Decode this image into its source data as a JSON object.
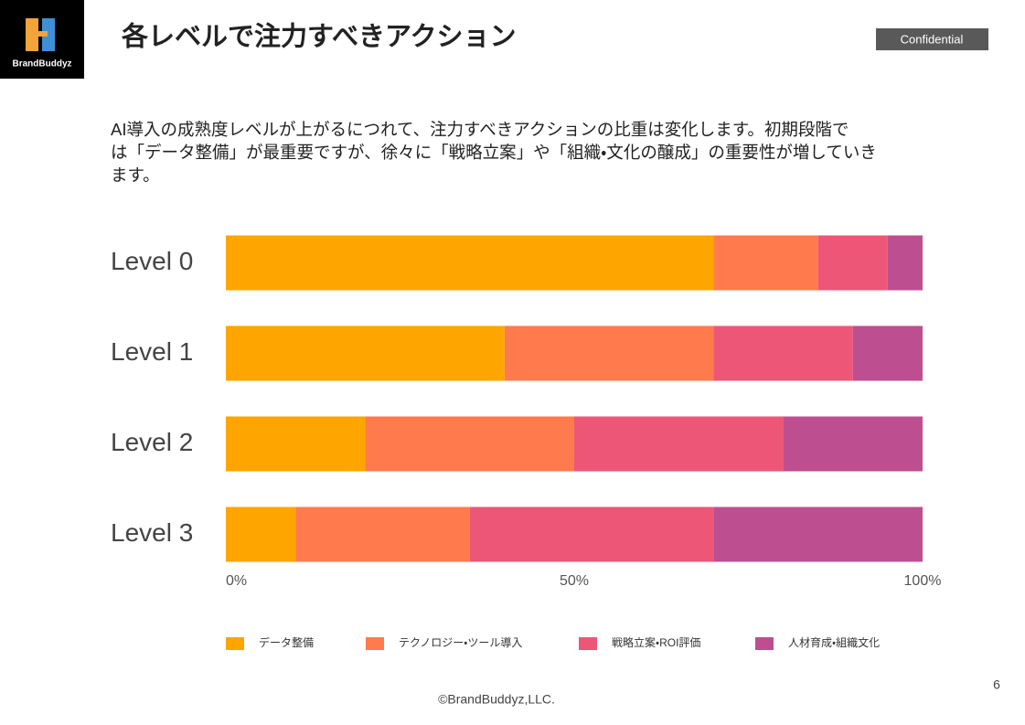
{
  "header": {
    "title": "各レベルで注力すべきアクション",
    "badge": "Confidential",
    "logo": "BrandBuddyz"
  },
  "description": [
    "AI導入の成熟度レベルが上がるにつれて、注力すべきアクションの比重は変化します。初期段階で",
    "は「データ整備」が最重要ですが、徐々に「戦略立案」や「組織・文化の醸成」の重要性が増していき",
    "ます。"
  ],
  "chart_data": {
    "type": "stacked-bar-horizontal",
    "categories": [
      "Level 0",
      "Level 1",
      "Level 2",
      "Level 3"
    ],
    "series": [
      {
        "name": "データ整備",
        "color": "#FFA500",
        "values": [
          70,
          40,
          20,
          10
        ]
      },
      {
        "name": "テクノロジー・ツール導入",
        "color": "#FF7A4D",
        "values": [
          15,
          30,
          30,
          25
        ]
      },
      {
        "name": "戦略立案・ROI評価",
        "color": "#EE5677",
        "values": [
          10,
          20,
          30,
          35
        ]
      },
      {
        "name": "人材育成・組織文化",
        "color": "#BD4F91",
        "values": [
          5,
          10,
          20,
          30
        ]
      }
    ],
    "xlim": [
      0,
      100
    ],
    "xticks": [
      {
        "value": 0,
        "label": "0%"
      },
      {
        "value": 50,
        "label": "50%"
      },
      {
        "value": 100,
        "label": "100%"
      }
    ],
    "grid": false,
    "legend": "bottom"
  },
  "footer": {
    "copyright": "©BrandBuddyz,LLC.",
    "page": "6"
  }
}
